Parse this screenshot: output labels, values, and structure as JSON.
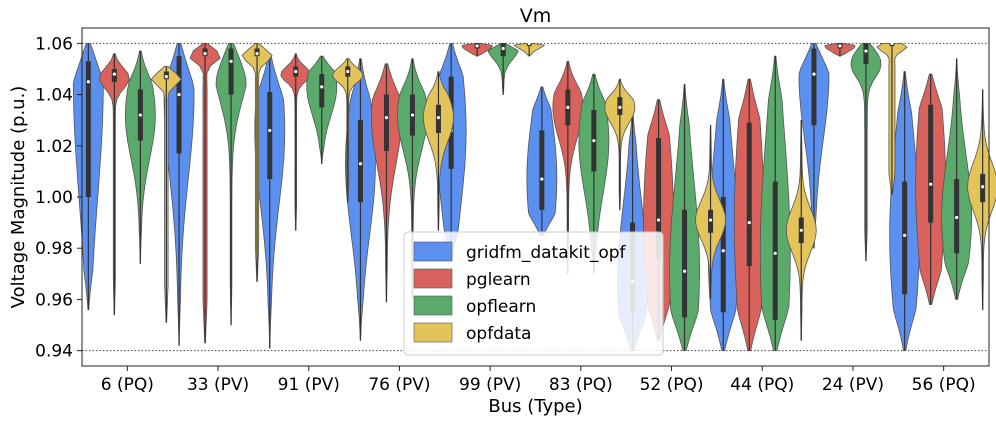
{
  "chart_data": {
    "type": "violin",
    "title": "Vm",
    "xlabel": "Bus (Type)",
    "ylabel": "Voltage Magnitude (p.u.)",
    "ylim": [
      0.934,
      1.066
    ],
    "yticks": [
      0.94,
      0.96,
      0.98,
      1.0,
      1.02,
      1.04,
      1.06
    ],
    "ytick_labels": [
      "0.94",
      "0.96",
      "0.98",
      "1.00",
      "1.02",
      "1.04",
      "1.06"
    ],
    "reference_lines": [
      0.94,
      1.06
    ],
    "categories": [
      "6 (PQ)",
      "33 (PV)",
      "91 (PV)",
      "76 (PV)",
      "99 (PV)",
      "83 (PQ)",
      "52 (PQ)",
      "44 (PQ)",
      "24 (PV)",
      "56 (PQ)"
    ],
    "series": [
      {
        "name": "gridfm_datakit_opf",
        "color": "#5b8ff0",
        "stats": [
          {
            "min": 0.956,
            "q1": 1.0,
            "median": 1.045,
            "q3": 1.053,
            "max": 1.06
          },
          {
            "min": 0.942,
            "q1": 1.017,
            "median": 1.04,
            "q3": 1.055,
            "max": 1.06
          },
          {
            "min": 0.941,
            "q1": 1.007,
            "median": 1.026,
            "q3": 1.041,
            "max": 1.055
          },
          {
            "min": 0.944,
            "q1": 0.998,
            "median": 1.013,
            "q3": 1.03,
            "max": 1.054
          },
          {
            "min": 0.975,
            "q1": 1.011,
            "median": 1.026,
            "q3": 1.047,
            "max": 1.06
          },
          {
            "min": 0.985,
            "q1": 0.995,
            "median": 1.007,
            "q3": 1.026,
            "max": 1.043
          },
          {
            "min": 0.94,
            "q1": 0.955,
            "median": 0.967,
            "q3": 0.99,
            "max": 1.035
          },
          {
            "min": 0.94,
            "q1": 0.955,
            "median": 0.979,
            "q3": 1.0,
            "max": 1.046
          },
          {
            "min": 0.98,
            "q1": 1.028,
            "median": 1.048,
            "q3": 1.058,
            "max": 1.06
          },
          {
            "min": 0.94,
            "q1": 0.962,
            "median": 0.985,
            "q3": 1.006,
            "max": 1.049
          }
        ]
      },
      {
        "name": "pglearn",
        "color": "#d9625c",
        "stats": [
          {
            "min": 0.954,
            "q1": 1.045,
            "median": 1.048,
            "q3": 1.05,
            "max": 1.056
          },
          {
            "min": 0.943,
            "q1": 1.055,
            "median": 1.056,
            "q3": 1.058,
            "max": 1.06
          },
          {
            "min": 0.987,
            "q1": 1.047,
            "median": 1.049,
            "q3": 1.051,
            "max": 1.056
          },
          {
            "min": 0.959,
            "q1": 1.018,
            "median": 1.031,
            "q3": 1.04,
            "max": 1.052
          },
          {
            "min": 1.055,
            "q1": 1.058,
            "median": 1.059,
            "q3": 1.06,
            "max": 1.06
          },
          {
            "min": 0.97,
            "q1": 1.028,
            "median": 1.035,
            "q3": 1.042,
            "max": 1.053
          },
          {
            "min": 0.944,
            "q1": 0.976,
            "median": 0.991,
            "q3": 1.023,
            "max": 1.038
          },
          {
            "min": 0.94,
            "q1": 0.973,
            "median": 0.99,
            "q3": 1.029,
            "max": 1.046
          },
          {
            "min": 1.055,
            "q1": 1.058,
            "median": 1.059,
            "q3": 1.06,
            "max": 1.06
          },
          {
            "min": 0.958,
            "q1": 0.99,
            "median": 1.005,
            "q3": 1.036,
            "max": 1.048
          }
        ]
      },
      {
        "name": "opflearn",
        "color": "#5aab6b",
        "stats": [
          {
            "min": 0.974,
            "q1": 1.022,
            "median": 1.032,
            "q3": 1.042,
            "max": 1.057
          },
          {
            "min": 0.95,
            "q1": 1.04,
            "median": 1.053,
            "q3": 1.058,
            "max": 1.06
          },
          {
            "min": 1.013,
            "q1": 1.035,
            "median": 1.043,
            "q3": 1.048,
            "max": 1.055
          },
          {
            "min": 0.96,
            "q1": 1.024,
            "median": 1.032,
            "q3": 1.04,
            "max": 1.054
          },
          {
            "min": 1.04,
            "q1": 1.055,
            "median": 1.058,
            "q3": 1.06,
            "max": 1.06
          },
          {
            "min": 0.97,
            "q1": 1.01,
            "median": 1.022,
            "q3": 1.034,
            "max": 1.048
          },
          {
            "min": 0.94,
            "q1": 0.953,
            "median": 0.971,
            "q3": 0.995,
            "max": 1.044
          },
          {
            "min": 0.94,
            "q1": 0.952,
            "median": 0.978,
            "q3": 1.006,
            "max": 1.055
          },
          {
            "min": 0.975,
            "q1": 1.052,
            "median": 1.057,
            "q3": 1.06,
            "max": 1.06
          },
          {
            "min": 0.96,
            "q1": 0.978,
            "median": 0.992,
            "q3": 1.007,
            "max": 1.054
          }
        ]
      },
      {
        "name": "opfdata",
        "color": "#e2c45b",
        "stats": [
          {
            "min": 0.951,
            "q1": 1.046,
            "median": 1.047,
            "q3": 1.049,
            "max": 1.051
          },
          {
            "min": 0.967,
            "q1": 1.055,
            "median": 1.056,
            "q3": 1.058,
            "max": 1.06
          },
          {
            "min": 0.998,
            "q1": 1.047,
            "median": 1.049,
            "q3": 1.051,
            "max": 1.054
          },
          {
            "min": 0.987,
            "q1": 1.025,
            "median": 1.031,
            "q3": 1.036,
            "max": 1.049
          },
          {
            "min": 1.055,
            "q1": 1.059,
            "median": 1.06,
            "q3": 1.06,
            "max": 1.06
          },
          {
            "min": 0.995,
            "q1": 1.032,
            "median": 1.035,
            "q3": 1.039,
            "max": 1.046
          },
          {
            "min": 0.96,
            "q1": 0.986,
            "median": 0.991,
            "q3": 0.995,
            "max": 1.028
          },
          {
            "min": 0.944,
            "q1": 0.982,
            "median": 0.987,
            "q3": 0.992,
            "max": 1.03
          },
          {
            "min": 1.001,
            "q1": 1.059,
            "median": 1.06,
            "q3": 1.06,
            "max": 1.06
          },
          {
            "min": 0.956,
            "q1": 0.998,
            "median": 1.004,
            "q3": 1.009,
            "max": 1.042
          }
        ]
      }
    ],
    "legend": {
      "placement": "lower-center",
      "entries": [
        "gridfm_datakit_opf",
        "pglearn",
        "opflearn",
        "opfdata"
      ]
    }
  }
}
